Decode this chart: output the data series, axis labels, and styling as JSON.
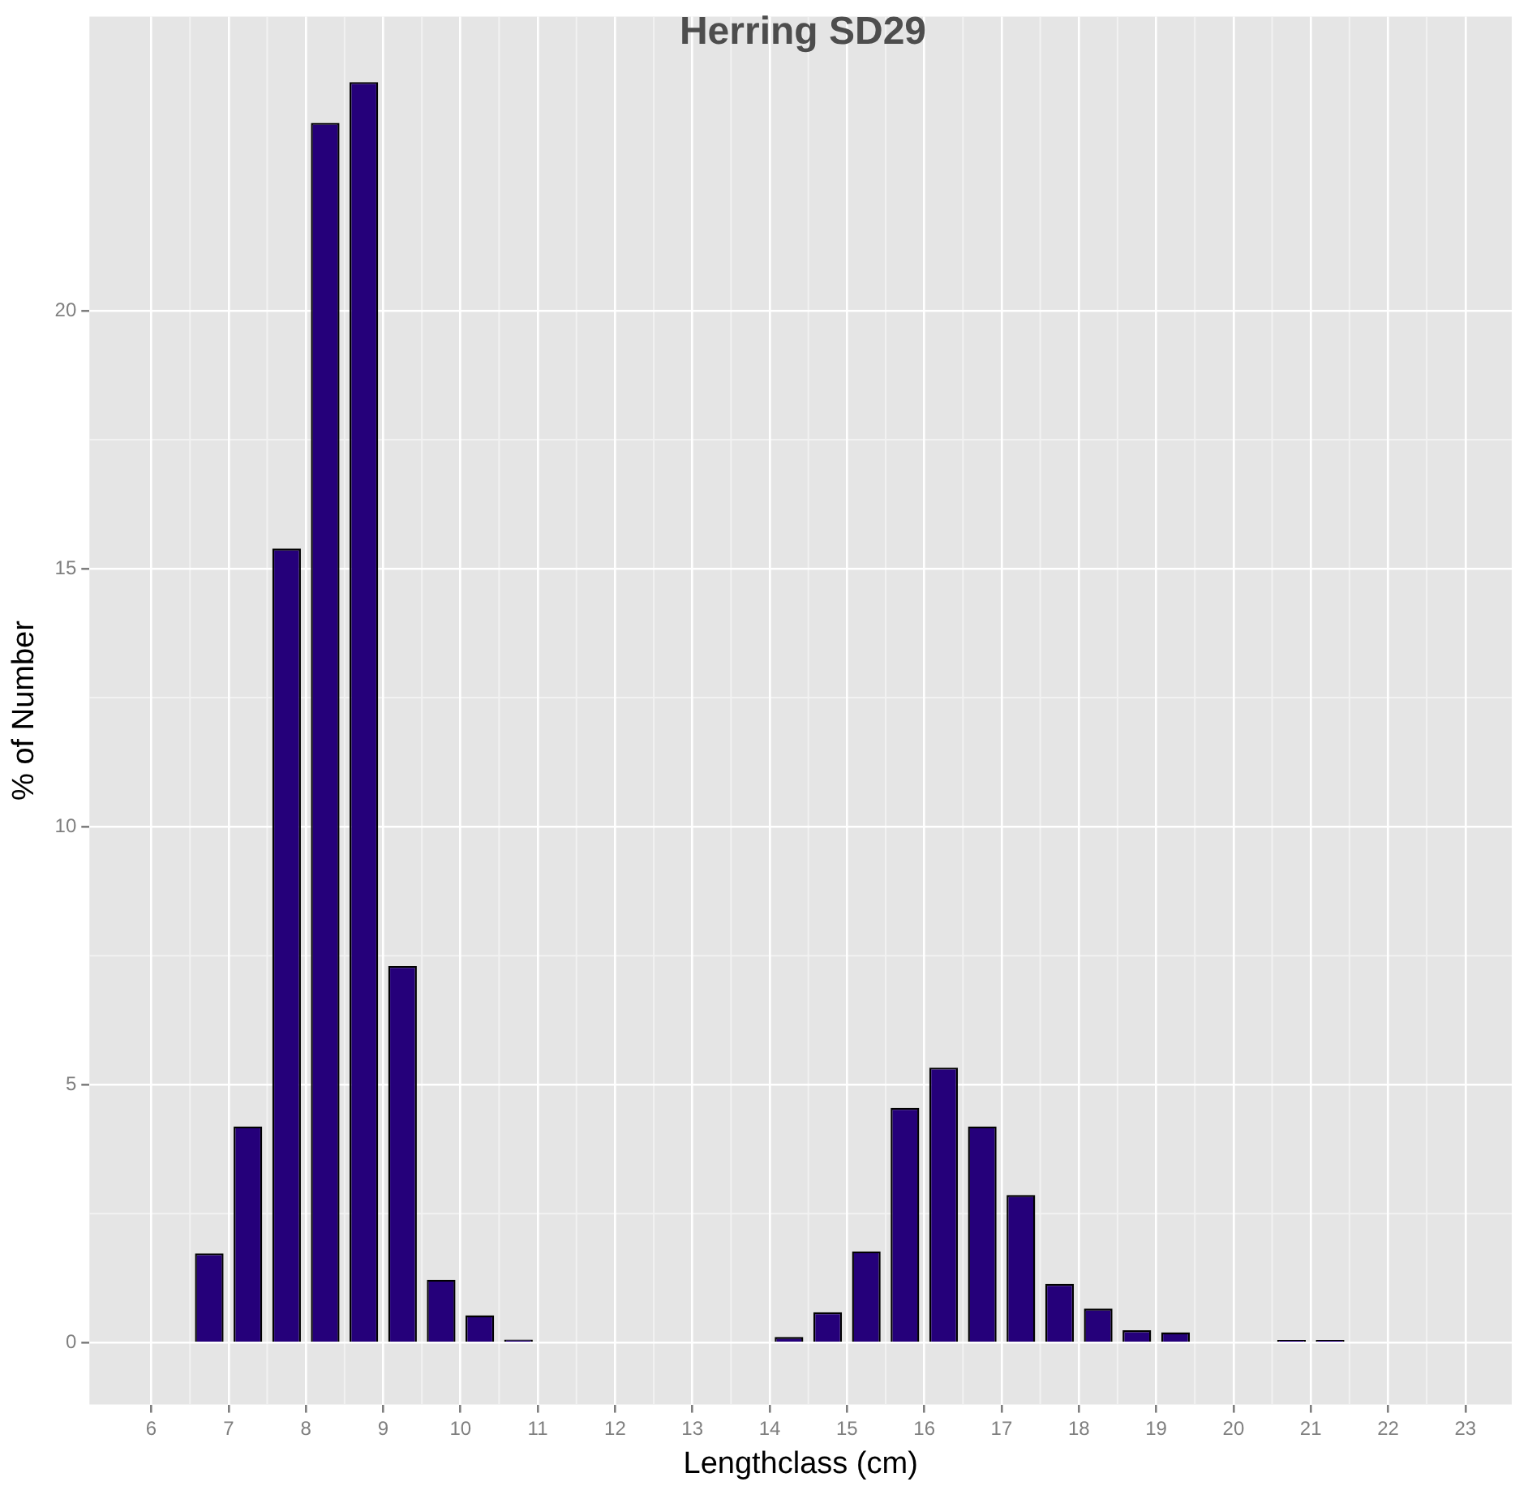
{
  "chart_data": {
    "type": "bar",
    "title": "Herring SD29",
    "xlabel": "Lengthclass (cm)",
    "ylabel": "% of Number",
    "x": [
      6.75,
      7.25,
      7.75,
      8.25,
      8.75,
      9.25,
      9.75,
      10.25,
      10.75,
      14.25,
      14.75,
      15.25,
      15.75,
      16.25,
      16.75,
      17.25,
      17.75,
      18.25,
      18.75,
      19.25,
      20.75,
      21.25
    ],
    "values": [
      1.73,
      4.19,
      15.39,
      23.64,
      24.43,
      7.3,
      1.22,
      0.53,
      0.06,
      0.11,
      0.59,
      1.77,
      4.55,
      5.33,
      4.19,
      2.86,
      1.14,
      0.66,
      0.24,
      0.2,
      0.05,
      0.05
    ],
    "color": "#25007a",
    "xlim": [
      5.2,
      23.6
    ],
    "xticks": [
      6,
      7,
      8,
      9,
      10,
      11,
      12,
      13,
      14,
      15,
      16,
      17,
      18,
      19,
      20,
      21,
      22,
      23
    ],
    "ylim": [
      -1.2,
      25.7
    ],
    "yticks": [
      0,
      5,
      10,
      15,
      20
    ],
    "grid": true,
    "legend": false
  }
}
